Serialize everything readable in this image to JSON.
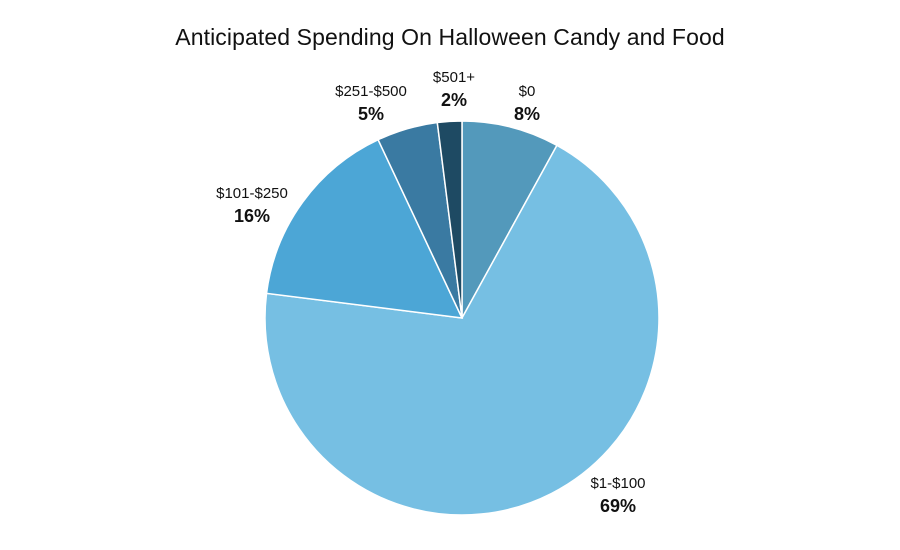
{
  "chart_data": {
    "type": "pie",
    "title": "Anticipated Spending On Halloween Candy and Food",
    "slices": [
      {
        "label": "$0",
        "value": 8,
        "value_label": "8%",
        "color": "#5399bb"
      },
      {
        "label": "$1-$100",
        "value": 69,
        "value_label": "69%",
        "color": "#76bfe3"
      },
      {
        "label": "$101-$250",
        "value": 16,
        "value_label": "16%",
        "color": "#4ca6d6"
      },
      {
        "label": "$251-$500",
        "value": 5,
        "value_label": "5%",
        "color": "#3a7aa2"
      },
      {
        "label": "$501+",
        "value": 2,
        "value_label": "2%",
        "color": "#1e4a63"
      }
    ],
    "start": "12 o'clock",
    "direction": "clockwise"
  }
}
